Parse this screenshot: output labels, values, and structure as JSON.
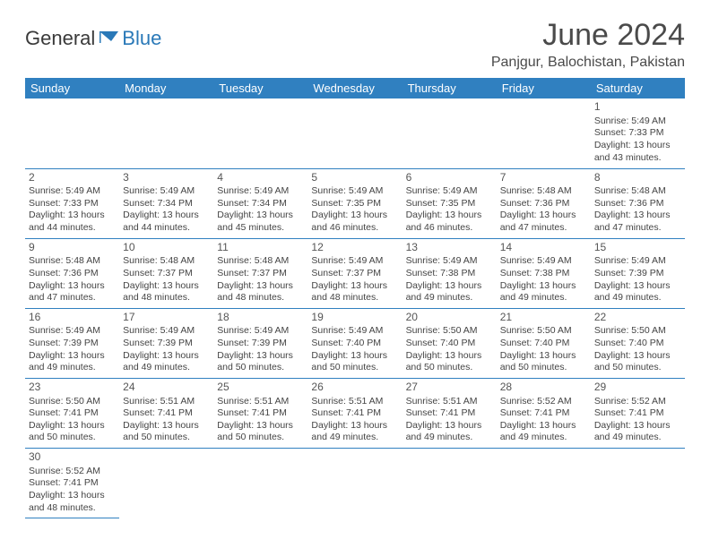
{
  "logo": {
    "general": "General",
    "blue": "Blue"
  },
  "title": "June 2024",
  "location": "Panjgur, Balochistan, Pakistan",
  "colors": {
    "header_bg": "#3080c0",
    "header_fg": "#ffffff",
    "accent_blue": "#2a79b8",
    "text": "#3a3a3a",
    "cell_text": "#444444",
    "border": "#3080c0",
    "background": "#ffffff"
  },
  "typography": {
    "title_fontsize": 34,
    "location_fontsize": 16,
    "dayheader_fontsize": 13,
    "cell_fontsize": 10.5,
    "daynum_fontsize": 12
  },
  "day_headers": [
    "Sunday",
    "Monday",
    "Tuesday",
    "Wednesday",
    "Thursday",
    "Friday",
    "Saturday"
  ],
  "weeks": [
    [
      null,
      null,
      null,
      null,
      null,
      null,
      {
        "n": "1",
        "sr": "5:49 AM",
        "ss": "7:33 PM",
        "dl": "13 hours and 43 minutes."
      }
    ],
    [
      {
        "n": "2",
        "sr": "5:49 AM",
        "ss": "7:33 PM",
        "dl": "13 hours and 44 minutes."
      },
      {
        "n": "3",
        "sr": "5:49 AM",
        "ss": "7:34 PM",
        "dl": "13 hours and 44 minutes."
      },
      {
        "n": "4",
        "sr": "5:49 AM",
        "ss": "7:34 PM",
        "dl": "13 hours and 45 minutes."
      },
      {
        "n": "5",
        "sr": "5:49 AM",
        "ss": "7:35 PM",
        "dl": "13 hours and 46 minutes."
      },
      {
        "n": "6",
        "sr": "5:49 AM",
        "ss": "7:35 PM",
        "dl": "13 hours and 46 minutes."
      },
      {
        "n": "7",
        "sr": "5:48 AM",
        "ss": "7:36 PM",
        "dl": "13 hours and 47 minutes."
      },
      {
        "n": "8",
        "sr": "5:48 AM",
        "ss": "7:36 PM",
        "dl": "13 hours and 47 minutes."
      }
    ],
    [
      {
        "n": "9",
        "sr": "5:48 AM",
        "ss": "7:36 PM",
        "dl": "13 hours and 47 minutes."
      },
      {
        "n": "10",
        "sr": "5:48 AM",
        "ss": "7:37 PM",
        "dl": "13 hours and 48 minutes."
      },
      {
        "n": "11",
        "sr": "5:48 AM",
        "ss": "7:37 PM",
        "dl": "13 hours and 48 minutes."
      },
      {
        "n": "12",
        "sr": "5:49 AM",
        "ss": "7:37 PM",
        "dl": "13 hours and 48 minutes."
      },
      {
        "n": "13",
        "sr": "5:49 AM",
        "ss": "7:38 PM",
        "dl": "13 hours and 49 minutes."
      },
      {
        "n": "14",
        "sr": "5:49 AM",
        "ss": "7:38 PM",
        "dl": "13 hours and 49 minutes."
      },
      {
        "n": "15",
        "sr": "5:49 AM",
        "ss": "7:39 PM",
        "dl": "13 hours and 49 minutes."
      }
    ],
    [
      {
        "n": "16",
        "sr": "5:49 AM",
        "ss": "7:39 PM",
        "dl": "13 hours and 49 minutes."
      },
      {
        "n": "17",
        "sr": "5:49 AM",
        "ss": "7:39 PM",
        "dl": "13 hours and 49 minutes."
      },
      {
        "n": "18",
        "sr": "5:49 AM",
        "ss": "7:39 PM",
        "dl": "13 hours and 50 minutes."
      },
      {
        "n": "19",
        "sr": "5:49 AM",
        "ss": "7:40 PM",
        "dl": "13 hours and 50 minutes."
      },
      {
        "n": "20",
        "sr": "5:50 AM",
        "ss": "7:40 PM",
        "dl": "13 hours and 50 minutes."
      },
      {
        "n": "21",
        "sr": "5:50 AM",
        "ss": "7:40 PM",
        "dl": "13 hours and 50 minutes."
      },
      {
        "n": "22",
        "sr": "5:50 AM",
        "ss": "7:40 PM",
        "dl": "13 hours and 50 minutes."
      }
    ],
    [
      {
        "n": "23",
        "sr": "5:50 AM",
        "ss": "7:41 PM",
        "dl": "13 hours and 50 minutes."
      },
      {
        "n": "24",
        "sr": "5:51 AM",
        "ss": "7:41 PM",
        "dl": "13 hours and 50 minutes."
      },
      {
        "n": "25",
        "sr": "5:51 AM",
        "ss": "7:41 PM",
        "dl": "13 hours and 50 minutes."
      },
      {
        "n": "26",
        "sr": "5:51 AM",
        "ss": "7:41 PM",
        "dl": "13 hours and 49 minutes."
      },
      {
        "n": "27",
        "sr": "5:51 AM",
        "ss": "7:41 PM",
        "dl": "13 hours and 49 minutes."
      },
      {
        "n": "28",
        "sr": "5:52 AM",
        "ss": "7:41 PM",
        "dl": "13 hours and 49 minutes."
      },
      {
        "n": "29",
        "sr": "5:52 AM",
        "ss": "7:41 PM",
        "dl": "13 hours and 49 minutes."
      }
    ],
    [
      {
        "n": "30",
        "sr": "5:52 AM",
        "ss": "7:41 PM",
        "dl": "13 hours and 48 minutes."
      },
      null,
      null,
      null,
      null,
      null,
      null
    ]
  ],
  "labels": {
    "sunrise": "Sunrise:",
    "sunset": "Sunset:",
    "daylight": "Daylight:"
  }
}
